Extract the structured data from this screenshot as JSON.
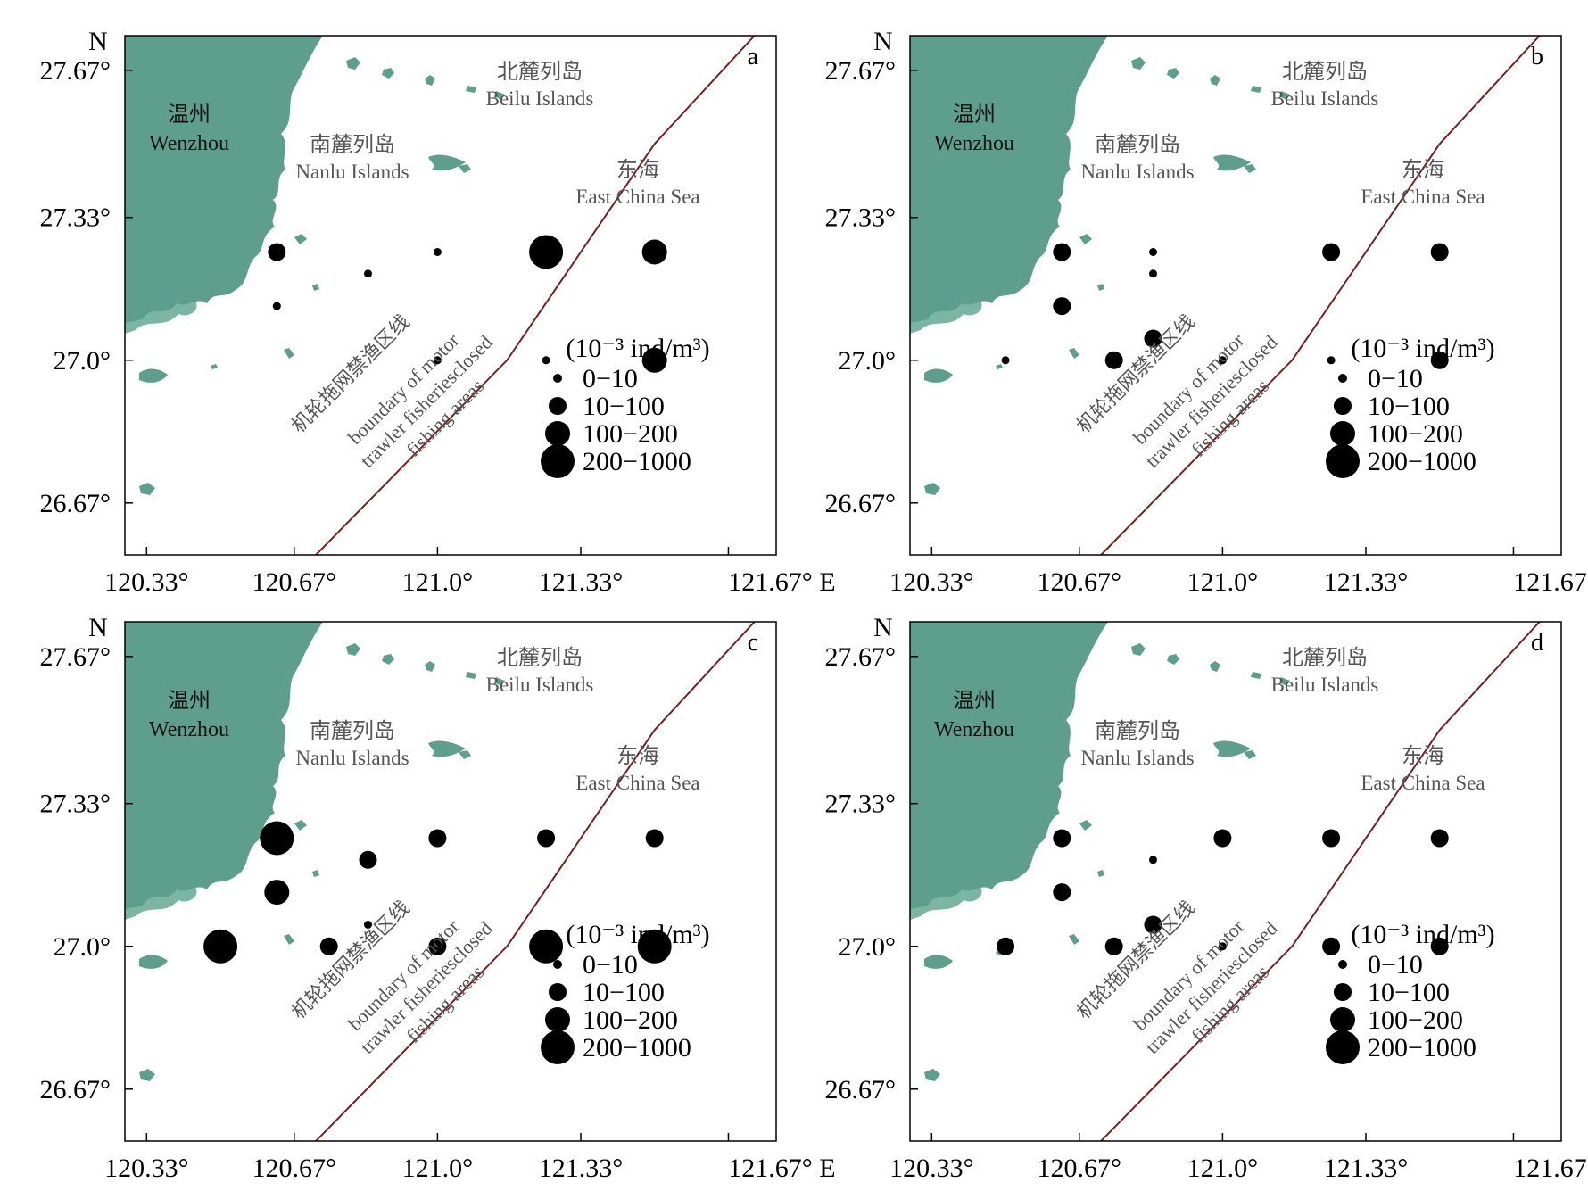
{
  "axes": {
    "north_label": "N",
    "east_label": "E",
    "lat_ticks": [
      {
        "value": 27.67,
        "label": "27.67°"
      },
      {
        "value": 27.33,
        "label": "27.33°"
      },
      {
        "value": 27.0,
        "label": "27.0°"
      },
      {
        "value": 26.67,
        "label": "26.67°"
      }
    ],
    "lon_ticks": [
      {
        "value": 120.33,
        "label": "120.33°"
      },
      {
        "value": 120.67,
        "label": "120.67°"
      },
      {
        "value": 121.0,
        "label": "121.0°"
      },
      {
        "value": 121.33,
        "label": "121.33°"
      },
      {
        "value": 121.67,
        "label": "121.67°"
      }
    ],
    "lon_range": [
      120.28,
      121.78
    ],
    "lat_range": [
      26.55,
      27.75
    ]
  },
  "places": {
    "wenzhou_cn": "温州",
    "wenzhou_en": "Wenzhou",
    "nanlu_cn": "南麓列岛",
    "nanlu_en": "Nanlu Islands",
    "beilu_cn": "北麓列岛",
    "beilu_en": "Beilu Islands",
    "sea_cn": "东海",
    "sea_en": "East China Sea"
  },
  "boundary": {
    "label_cn": "机轮拖网禁渔区线",
    "label_en_1": "boundary of motor",
    "label_en_2": "trawler fisheriesclosed",
    "label_en_3": "fishing areas",
    "points": [
      [
        120.72,
        26.55
      ],
      [
        121.16,
        27.0
      ],
      [
        121.5,
        27.5
      ],
      [
        121.73,
        27.75
      ]
    ]
  },
  "legend": {
    "unit_label": "(10⁻³ ind/m³)",
    "classes": [
      {
        "label": "0−10",
        "size_class": 1
      },
      {
        "label": "10−100",
        "size_class": 2
      },
      {
        "label": "100−200",
        "size_class": 3
      },
      {
        "label": "200−1000",
        "size_class": 4
      }
    ]
  },
  "colors": {
    "land_dark": "#5e9e8c",
    "land_light": "#7bb6a2",
    "boundary": "#7a1f1f",
    "station": "#000000"
  },
  "panels": [
    {
      "letter": "a",
      "stations": [
        {
          "lon": 120.63,
          "lat": 27.25,
          "size_class": 2
        },
        {
          "lon": 120.84,
          "lat": 27.2,
          "size_class": 1
        },
        {
          "lon": 121.0,
          "lat": 27.25,
          "size_class": 1
        },
        {
          "lon": 121.25,
          "lat": 27.25,
          "size_class": 4
        },
        {
          "lon": 121.5,
          "lat": 27.25,
          "size_class": 3
        },
        {
          "lon": 120.63,
          "lat": 27.125,
          "size_class": 1
        },
        {
          "lon": 121.0,
          "lat": 27.0,
          "size_class": 1
        },
        {
          "lon": 121.25,
          "lat": 27.0,
          "size_class": 1
        },
        {
          "lon": 121.5,
          "lat": 27.0,
          "size_class": 3
        }
      ]
    },
    {
      "letter": "b",
      "stations": [
        {
          "lon": 120.63,
          "lat": 27.25,
          "size_class": 2
        },
        {
          "lon": 120.84,
          "lat": 27.25,
          "size_class": 1
        },
        {
          "lon": 121.25,
          "lat": 27.25,
          "size_class": 2
        },
        {
          "lon": 121.5,
          "lat": 27.25,
          "size_class": 2
        },
        {
          "lon": 120.84,
          "lat": 27.2,
          "size_class": 1
        },
        {
          "lon": 120.63,
          "lat": 27.125,
          "size_class": 2
        },
        {
          "lon": 120.84,
          "lat": 27.05,
          "size_class": 2
        },
        {
          "lon": 120.5,
          "lat": 27.0,
          "size_class": 1
        },
        {
          "lon": 120.75,
          "lat": 27.0,
          "size_class": 2
        },
        {
          "lon": 121.0,
          "lat": 27.0,
          "size_class": 1
        },
        {
          "lon": 121.25,
          "lat": 27.0,
          "size_class": 1
        },
        {
          "lon": 121.5,
          "lat": 27.0,
          "size_class": 2
        }
      ]
    },
    {
      "letter": "c",
      "stations": [
        {
          "lon": 120.63,
          "lat": 27.25,
          "size_class": 4
        },
        {
          "lon": 121.0,
          "lat": 27.25,
          "size_class": 2
        },
        {
          "lon": 121.25,
          "lat": 27.25,
          "size_class": 2
        },
        {
          "lon": 121.5,
          "lat": 27.25,
          "size_class": 2
        },
        {
          "lon": 120.84,
          "lat": 27.2,
          "size_class": 2
        },
        {
          "lon": 120.63,
          "lat": 27.125,
          "size_class": 3
        },
        {
          "lon": 120.84,
          "lat": 27.05,
          "size_class": 1
        },
        {
          "lon": 120.5,
          "lat": 27.0,
          "size_class": 4
        },
        {
          "lon": 120.75,
          "lat": 27.0,
          "size_class": 2
        },
        {
          "lon": 121.0,
          "lat": 27.0,
          "size_class": 2
        },
        {
          "lon": 121.25,
          "lat": 27.0,
          "size_class": 4
        },
        {
          "lon": 121.5,
          "lat": 27.0,
          "size_class": 4
        }
      ]
    },
    {
      "letter": "d",
      "stations": [
        {
          "lon": 120.63,
          "lat": 27.25,
          "size_class": 2
        },
        {
          "lon": 121.0,
          "lat": 27.25,
          "size_class": 2
        },
        {
          "lon": 121.25,
          "lat": 27.25,
          "size_class": 2
        },
        {
          "lon": 121.5,
          "lat": 27.25,
          "size_class": 2
        },
        {
          "lon": 120.84,
          "lat": 27.2,
          "size_class": 1
        },
        {
          "lon": 120.63,
          "lat": 27.125,
          "size_class": 2
        },
        {
          "lon": 120.84,
          "lat": 27.05,
          "size_class": 2
        },
        {
          "lon": 120.5,
          "lat": 27.0,
          "size_class": 2
        },
        {
          "lon": 120.75,
          "lat": 27.0,
          "size_class": 2
        },
        {
          "lon": 121.0,
          "lat": 27.0,
          "size_class": 1
        },
        {
          "lon": 121.25,
          "lat": 27.0,
          "size_class": 2
        },
        {
          "lon": 121.5,
          "lat": 27.0,
          "size_class": 2
        }
      ]
    }
  ]
}
